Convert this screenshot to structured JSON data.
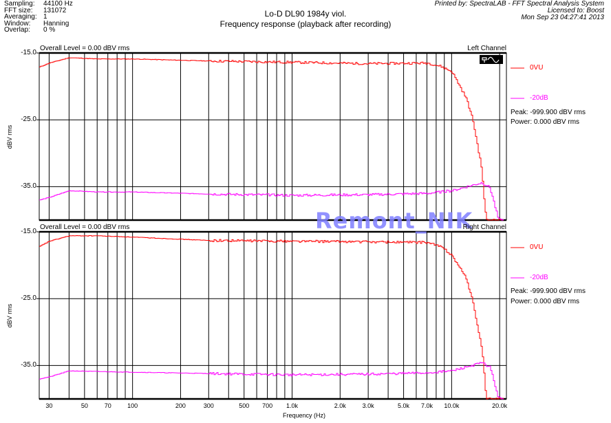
{
  "header": {
    "info": [
      {
        "label": "Sampling:",
        "value": "44100 Hz"
      },
      {
        "label": "FFT size:",
        "value": "131072"
      },
      {
        "label": "Averaging:",
        "value": "1"
      },
      {
        "label": "Window:",
        "value": "Hanning"
      },
      {
        "label": "Overlap:",
        "value": "0 %"
      }
    ],
    "title1": "Lo-D DL90 1984y viol.",
    "title2": "Frequency response (playback after recording)",
    "printed_by": "Printed by: SpectraLAB - FFT Spectral Analysis System",
    "licensed": "Licensed to: Boost",
    "date": "Mon Sep 23 04:27:41 2013"
  },
  "watermark": "Remont_NIK",
  "colors": {
    "s0": "#ff0000",
    "s1": "#ff00ff"
  },
  "chart_data": [
    {
      "type": "line",
      "channel": "Left Channel",
      "overall": "Overall Level = 0.00 dBV rms",
      "ylabel": "dBV rms",
      "xlabel": "Frequency (Hz)",
      "xscale": "log",
      "xlim": [
        26,
        22050
      ],
      "ylim": [
        -40,
        -15
      ],
      "yticks": [
        "-15.0",
        "-25.0",
        "-35.0"
      ],
      "xticks": [
        {
          "v": 30,
          "l": "30"
        },
        {
          "v": 50,
          "l": "50"
        },
        {
          "v": 70,
          "l": "70"
        },
        {
          "v": 100,
          "l": "100"
        },
        {
          "v": 200,
          "l": "200"
        },
        {
          "v": 300,
          "l": "300"
        },
        {
          "v": 500,
          "l": "500"
        },
        {
          "v": 700,
          "l": "700"
        },
        {
          "v": 1000,
          "l": "1.0k"
        },
        {
          "v": 2000,
          "l": "2.0k"
        },
        {
          "v": 3000,
          "l": "3.0k"
        },
        {
          "v": 5000,
          "l": "5.0k"
        },
        {
          "v": 7000,
          "l": "7.0k"
        },
        {
          "v": 10000,
          "l": "10.0k"
        },
        {
          "v": 20000,
          "l": "20.0k"
        }
      ],
      "peak": "Peak: -999.900 dBV rms",
      "power": "Power: 0.000 dBV rms",
      "series": [
        {
          "name": "0VU",
          "points": [
            [
              26,
              -17.1
            ],
            [
              30,
              -16.5
            ],
            [
              40,
              -15.7
            ],
            [
              60,
              -15.9
            ],
            [
              100,
              -15.9
            ],
            [
              300,
              -16.2
            ],
            [
              1000,
              -16.4
            ],
            [
              3000,
              -16.6
            ],
            [
              7000,
              -16.5
            ],
            [
              8500,
              -17
            ],
            [
              10000,
              -17.8
            ],
            [
              12300,
              -21.8
            ],
            [
              13500,
              -25
            ],
            [
              15400,
              -32.5
            ],
            [
              15900,
              -37
            ],
            [
              16300,
              -39.5
            ],
            [
              16600,
              -40
            ]
          ]
        },
        {
          "name": "-20dB",
          "points": [
            [
              26,
              -37
            ],
            [
              30,
              -36.6
            ],
            [
              40,
              -35.6
            ],
            [
              60,
              -35.8
            ],
            [
              100,
              -35.8
            ],
            [
              300,
              -36.1
            ],
            [
              1000,
              -36.3
            ],
            [
              3000,
              -36.2
            ],
            [
              7000,
              -36
            ],
            [
              10000,
              -35.6
            ],
            [
              15400,
              -34.4
            ],
            [
              17200,
              -35.1
            ],
            [
              18000,
              -36.6
            ],
            [
              18600,
              -38
            ],
            [
              19500,
              -39.8
            ],
            [
              20000,
              -40
            ]
          ]
        }
      ]
    },
    {
      "type": "line",
      "channel": "Right Channel",
      "overall": "Overall Level = 0.00 dBV rms",
      "ylabel": "dBV rms",
      "xlabel": "Frequency (Hz)",
      "xscale": "log",
      "xlim": [
        26,
        22050
      ],
      "ylim": [
        -40,
        -15
      ],
      "yticks": [
        "-15.0",
        "-25.0",
        "-35.0"
      ],
      "peak": "Peak: -999.900 dBV rms",
      "power": "Power: 0.000 dBV rms",
      "series": [
        {
          "name": "0VU",
          "points": [
            [
              26,
              -17.2
            ],
            [
              30,
              -16.4
            ],
            [
              40,
              -15.6
            ],
            [
              60,
              -15.6
            ],
            [
              100,
              -15.8
            ],
            [
              300,
              -16.3
            ],
            [
              1000,
              -16.4
            ],
            [
              3000,
              -16.5
            ],
            [
              7000,
              -16.6
            ],
            [
              8500,
              -17.2
            ],
            [
              10000,
              -18.5
            ],
            [
              12300,
              -22
            ],
            [
              13500,
              -25.5
            ],
            [
              15400,
              -32.5
            ],
            [
              16000,
              -37
            ],
            [
              16400,
              -40
            ]
          ]
        },
        {
          "name": "-20dB",
          "points": [
            [
              26,
              -37
            ],
            [
              30,
              -36.7
            ],
            [
              40,
              -35.8
            ],
            [
              60,
              -35.9
            ],
            [
              100,
              -36
            ],
            [
              300,
              -36.2
            ],
            [
              1000,
              -36.4
            ],
            [
              3000,
              -36.3
            ],
            [
              7000,
              -36.1
            ],
            [
              10000,
              -35.8
            ],
            [
              15400,
              -34.6
            ],
            [
              17200,
              -35.2
            ],
            [
              18000,
              -36.6
            ],
            [
              18600,
              -38
            ],
            [
              19500,
              -39.8
            ],
            [
              20000,
              -40
            ]
          ]
        }
      ]
    }
  ]
}
